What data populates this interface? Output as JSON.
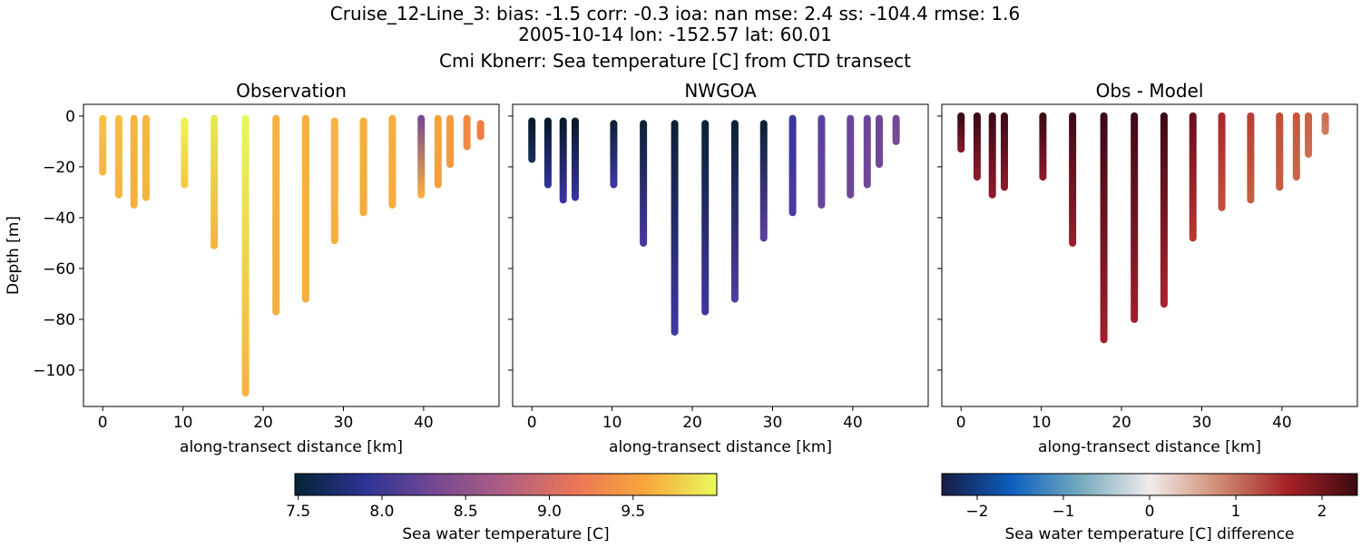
{
  "figure": {
    "title": [
      "Cruise_12-Line_3: bias: -1.5  corr: -0.3  ioa: nan  mse: 2.4  ss: -104.4  rmse: 1.6",
      "2005-10-14 lon: -152.57 lat: 60.01",
      "Cmi Kbnerr: Sea temperature [C] from CTD transect"
    ]
  },
  "chart_data": [
    {
      "type": "profile",
      "title": "Observation",
      "x_label": "along-transect distance [km]",
      "y_label": "Depth [m]",
      "yticklabels": true,
      "x": [
        0,
        2,
        3.9,
        5.4,
        10.2,
        13.9,
        17.8,
        21.6,
        25.3,
        28.9,
        32.5,
        36.1,
        39.7,
        41.8,
        43.3,
        45.4,
        47.1
      ],
      "depth_top": [
        -1,
        -1,
        -1,
        -1,
        -2,
        -1,
        -1,
        -1,
        -1,
        -2,
        -2,
        -1,
        -1,
        -1,
        -1,
        -1,
        -3
      ],
      "depth_bottom": [
        -22,
        -31,
        -35,
        -32,
        -27,
        -51,
        -109,
        -77,
        -72,
        -49,
        -38,
        -35,
        -31,
        -27,
        -19,
        -12,
        -8
      ],
      "top_colors": [
        "#f3c443",
        "#f5bf42",
        "#f5b440",
        "#f7b540",
        "#eef15a",
        "#e3ea50",
        "#e6f75a",
        "#f7b340",
        "#f7b03f",
        "#f7b23f",
        "#f6ad3e",
        "#f6ae3e",
        "#7a4a90",
        "#f6a33e",
        "#f49a3f",
        "#f08a40",
        "#ee7d3f"
      ],
      "colors": [
        "#f5b740",
        "#f5b540",
        "#f5b03f",
        "#f5b33f",
        "#f4c845",
        "#f5b33f",
        "#f7b23f",
        "#f7ae3e",
        "#f7ae3e",
        "#f7b03f",
        "#f6ab3e",
        "#f6ab3e",
        "#f6ac3e",
        "#f5a03f",
        "#f4983f",
        "#f08a40",
        "#ee7d3f"
      ],
      "xlim": [
        -2.4,
        49.4
      ],
      "ylim": [
        -114.3,
        4.6
      ],
      "xticks": [
        0,
        10,
        20,
        30,
        40
      ],
      "yticks": [
        {
          "value": -100,
          "label": "−100"
        },
        {
          "value": -80,
          "label": "−80"
        },
        {
          "value": -60,
          "label": "−60"
        },
        {
          "value": -40,
          "label": "−40"
        },
        {
          "value": -20,
          "label": "−20"
        },
        0
      ]
    },
    {
      "type": "profile",
      "title": "NWGOA",
      "x_label": "along-transect distance [km]",
      "yticklabels": false,
      "x": [
        0,
        2,
        3.9,
        5.4,
        10.2,
        13.9,
        17.8,
        21.6,
        25.3,
        28.9,
        32.5,
        36.1,
        39.7,
        41.8,
        43.3,
        45.4
      ],
      "depth_top": [
        -2,
        -2,
        -2,
        -2,
        -3,
        -3,
        -3,
        -3,
        -3,
        -3,
        -1,
        -1,
        -1,
        -1,
        -1,
        -1
      ],
      "depth_bottom": [
        -17,
        -27,
        -33,
        -32,
        -27,
        -50,
        -85,
        -77,
        -72,
        -48,
        -38,
        -35,
        -31,
        -27,
        -19,
        -10
      ],
      "top_colors": [
        "#061a2a",
        "#061a2a",
        "#061a2a",
        "#061a2a",
        "#0a2236",
        "#0a2236",
        "#0a2236",
        "#0a2236",
        "#0a2236",
        "#0a2236",
        "#3a36a0",
        "#5a40a0",
        "#6a459a",
        "#6e4698",
        "#704698",
        "#744997"
      ],
      "colors": [
        "#16305a",
        "#2f3298",
        "#3a34a0",
        "#38339e",
        "#3d36a0",
        "#4637a0",
        "#3f38a2",
        "#4035a0",
        "#4f3ca0",
        "#5c3f9c",
        "#4a3aa0",
        "#6a449a",
        "#6e4698",
        "#704698",
        "#724797",
        "#764a96"
      ],
      "xlim": [
        -2.4,
        49.4
      ],
      "ylim": [
        -114.3,
        4.6
      ],
      "xticks": [
        0,
        10,
        20,
        30,
        40
      ],
      "yticks": [
        -100,
        -80,
        -60,
        -40,
        -20,
        0
      ]
    },
    {
      "type": "profile",
      "title": "Obs - Model",
      "x_label": "along-transect distance [km]",
      "yticklabels": false,
      "x": [
        0,
        2,
        3.9,
        5.4,
        10.2,
        13.9,
        17.8,
        21.6,
        25.3,
        28.9,
        32.5,
        36.1,
        39.7,
        41.8,
        43.3,
        45.4
      ],
      "depth_top": [
        0,
        0,
        0,
        0,
        0,
        0,
        0,
        0,
        0,
        0,
        0,
        0,
        0,
        0,
        0,
        0
      ],
      "depth_bottom": [
        -13,
        -24,
        -31,
        -28,
        -24,
        -50,
        -88,
        -80,
        -74,
        -48,
        -36,
        -33,
        -28,
        -24,
        -15,
        -6
      ],
      "top_colors": [
        "#3c0a16",
        "#3c0a16",
        "#3c0a16",
        "#3c0a16",
        "#3c0a16",
        "#3c0a16",
        "#3c0a16",
        "#3c0a16",
        "#3c0a16",
        "#6a1020",
        "#a82a2c",
        "#b84034",
        "#c0503a",
        "#c4583e",
        "#c86244",
        "#cc6e50"
      ],
      "colors": [
        "#80182a",
        "#8e1a2c",
        "#8a1a2c",
        "#8a1a2c",
        "#8a1a2c",
        "#9a1c2e",
        "#a21e2e",
        "#a01c2e",
        "#a8242e",
        "#b53830",
        "#c0503a",
        "#c45e44",
        "#c65c44",
        "#c8654a",
        "#cc6e50",
        "#d07a5c"
      ],
      "xlim": [
        -2.4,
        49.4
      ],
      "ylim": [
        -114.3,
        4.6
      ],
      "xticks": [
        0,
        10,
        20,
        30,
        40
      ],
      "yticks": [
        -100,
        -80,
        -60,
        -40,
        -20,
        0
      ]
    }
  ],
  "colorbars": [
    {
      "label": "Sea water temperature [C]",
      "lim": [
        7.48,
        10.0
      ],
      "stops": [
        "#042333",
        "#2c3395",
        "#744992",
        "#b15f82",
        "#eb7655",
        "#f8a83e",
        "#e8fa5b"
      ],
      "ticks": [
        7.5,
        {
          "value": 8,
          "label": "8.0"
        },
        8.5,
        {
          "value": 9,
          "label": "9.0"
        },
        9.5
      ]
    },
    {
      "label": "Sea water temperature [C] difference",
      "lim": [
        -2.41,
        2.41
      ],
      "stops": [
        "#181c43",
        "#0c5ebe",
        "#75aabe",
        "#f1eceb",
        "#d08b73",
        "#a52125",
        "#3c0912"
      ],
      "ticks": [
        {
          "value": -2,
          "label": "−2"
        },
        {
          "value": -1,
          "label": "−1"
        },
        0,
        1,
        2
      ]
    }
  ]
}
